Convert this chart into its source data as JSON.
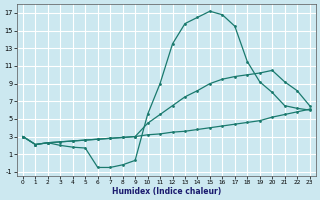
{
  "xlabel": "Humidex (Indice chaleur)",
  "line_color": "#1a7a6e",
  "bg_color": "#cce8f0",
  "grid_color": "#ffffff",
  "xlim": [
    -0.5,
    23.5
  ],
  "ylim": [
    -1.5,
    18
  ],
  "xticks": [
    0,
    1,
    2,
    3,
    4,
    5,
    6,
    7,
    8,
    9,
    10,
    11,
    12,
    13,
    14,
    15,
    16,
    17,
    18,
    19,
    20,
    21,
    22,
    23
  ],
  "yticks": [
    -1,
    1,
    3,
    5,
    7,
    9,
    11,
    13,
    15,
    17
  ],
  "line1_x": [
    0,
    1,
    2,
    3,
    4,
    5,
    6,
    7,
    8,
    9,
    10,
    11,
    12,
    13,
    14,
    15,
    16,
    17,
    18,
    19,
    20,
    21,
    22,
    23
  ],
  "line1_y": [
    3.0,
    2.1,
    2.3,
    2.4,
    2.5,
    2.6,
    2.7,
    2.8,
    2.9,
    3.0,
    3.2,
    3.3,
    3.5,
    3.6,
    3.8,
    4.0,
    4.2,
    4.4,
    4.6,
    4.8,
    5.2,
    5.5,
    5.8,
    6.1
  ],
  "line2_x": [
    0,
    1,
    2,
    3,
    4,
    5,
    6,
    7,
    8,
    9,
    10,
    11,
    12,
    13,
    14,
    15,
    16,
    17,
    18,
    19,
    20,
    21,
    22,
    23
  ],
  "line2_y": [
    3.0,
    2.1,
    2.3,
    2.4,
    2.5,
    2.6,
    2.7,
    2.8,
    2.9,
    3.0,
    4.5,
    5.5,
    6.5,
    7.5,
    8.2,
    9.0,
    9.5,
    9.8,
    10.0,
    10.2,
    10.5,
    9.2,
    8.2,
    6.5
  ],
  "line3_x": [
    0,
    1,
    2,
    3,
    4,
    5,
    6,
    7,
    8,
    9,
    10,
    11,
    12,
    13,
    14,
    15,
    16,
    17,
    18,
    19,
    20,
    21,
    22,
    23
  ],
  "line3_y": [
    3.0,
    2.1,
    2.3,
    2.0,
    1.8,
    1.7,
    -0.5,
    -0.5,
    -0.2,
    0.3,
    5.5,
    9.0,
    13.5,
    15.8,
    16.5,
    17.2,
    16.8,
    15.5,
    11.5,
    9.2,
    8.0,
    6.5,
    6.2,
    6.0
  ]
}
